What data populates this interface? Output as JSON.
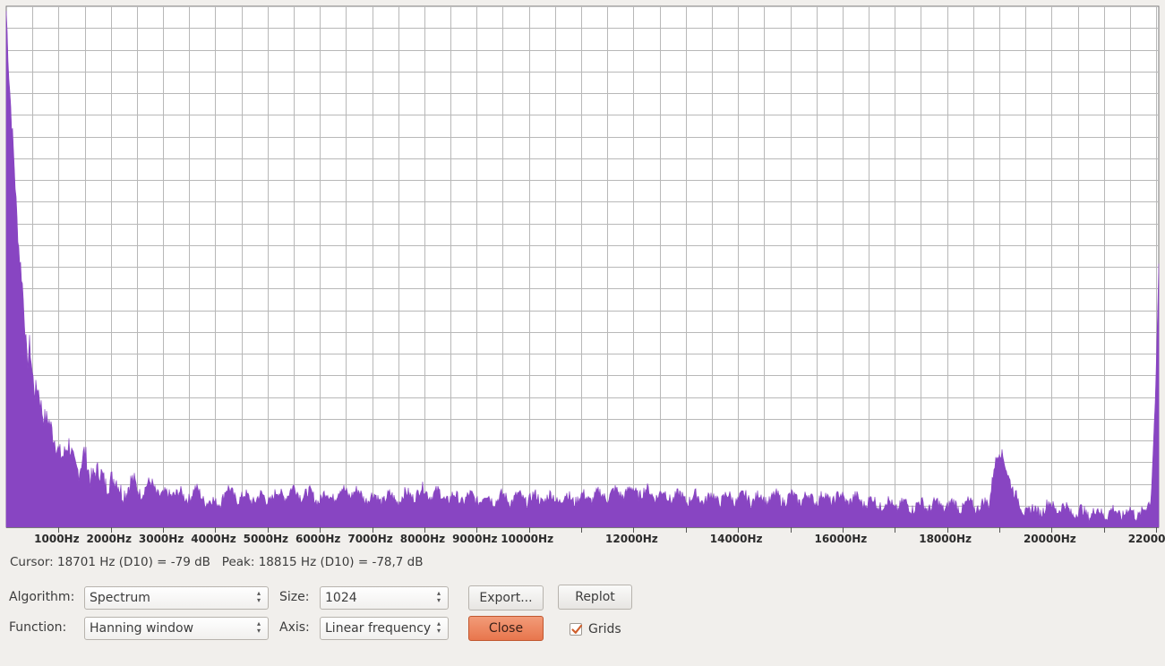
{
  "chart_data": {
    "type": "area",
    "xlabel": "",
    "ylabel": "",
    "x_unit": "Hz",
    "xlim": [
      0,
      22050
    ],
    "ylim_db": [
      -81,
      -9
    ],
    "grid": true,
    "fill_color": "#8845c2",
    "x_ticks": [
      {
        "value": 1000,
        "label": "1000Hz"
      },
      {
        "value": 2000,
        "label": "2000Hz"
      },
      {
        "value": 3000,
        "label": "3000Hz"
      },
      {
        "value": 4000,
        "label": "4000Hz"
      },
      {
        "value": 5000,
        "label": "5000Hz"
      },
      {
        "value": 6000,
        "label": "6000Hz"
      },
      {
        "value": 7000,
        "label": "7000Hz"
      },
      {
        "value": 8000,
        "label": "8000Hz"
      },
      {
        "value": 9000,
        "label": "9000Hz"
      },
      {
        "value": 10000,
        "label": "10000Hz"
      },
      {
        "value": 12000,
        "label": "12000Hz"
      },
      {
        "value": 14000,
        "label": "14000Hz"
      },
      {
        "value": 16000,
        "label": "16000Hz"
      },
      {
        "value": 18000,
        "label": "18000Hz"
      },
      {
        "value": 20000,
        "label": "20000Hz"
      },
      {
        "value": 22000,
        "label": "22000Hz"
      }
    ],
    "series": [
      {
        "x": [
          0,
          50,
          100,
          150,
          200,
          250,
          300,
          350,
          400,
          450,
          500,
          550,
          600,
          700,
          800,
          900,
          1000,
          1100,
          1200,
          1300,
          1400,
          1500,
          1600,
          1700,
          1800,
          1900,
          2000,
          2200,
          2400,
          2600,
          2800,
          3000,
          3200,
          3400,
          3600,
          3800,
          4000,
          4200,
          4500,
          5000,
          5500,
          6000,
          6500,
          7000,
          7500,
          8000,
          8500,
          9000,
          9500,
          10000,
          11000,
          12000,
          13000,
          14000,
          15000,
          16000,
          17000,
          18000,
          18500,
          18800,
          18900,
          19000,
          19100,
          19200,
          19300,
          19400,
          19600,
          20000,
          20500,
          21000,
          21500,
          21800,
          21900,
          22000,
          22050
        ],
        "y": [
          -10,
          -18,
          -24,
          -30,
          -38,
          -44,
          -47,
          -52,
          -58,
          -55,
          -60,
          -63,
          -62,
          -65,
          -66,
          -69,
          -70,
          -71,
          -70,
          -72,
          -73,
          -71,
          -74,
          -73,
          -74,
          -75,
          -74,
          -76,
          -75,
          -76,
          -75,
          -77,
          -76,
          -77,
          -76,
          -77,
          -78,
          -76,
          -77,
          -77,
          -76,
          -77,
          -76,
          -77,
          -77,
          -76,
          -77,
          -77,
          -77,
          -77,
          -77,
          -76,
          -77,
          -77,
          -77,
          -77,
          -78,
          -78,
          -78,
          -78,
          -72,
          -71,
          -72,
          -74,
          -77,
          -78,
          -79,
          -78,
          -79,
          -79,
          -79,
          -79,
          -77,
          -60,
          -45
        ]
      }
    ]
  },
  "status": {
    "cursor": "Cursor: 18701 Hz (D10) = -79 dB",
    "peak": "Peak: 18815 Hz (D10) = -78,7 dB"
  },
  "controls": {
    "algorithm_label": "Algorithm:",
    "algorithm_value": "Spectrum",
    "function_label": "Function:",
    "function_value": "Hanning window",
    "size_label": "Size:",
    "size_value": "1024",
    "axis_label": "Axis:",
    "axis_value": "Linear frequency",
    "export_label": "Export...",
    "replot_label": "Replot",
    "close_label": "Close",
    "grids_label": "Grids",
    "grids_checked": true
  },
  "icons": {
    "combo_arrows": "up-down-arrows-icon",
    "check": "checkmark-icon"
  }
}
